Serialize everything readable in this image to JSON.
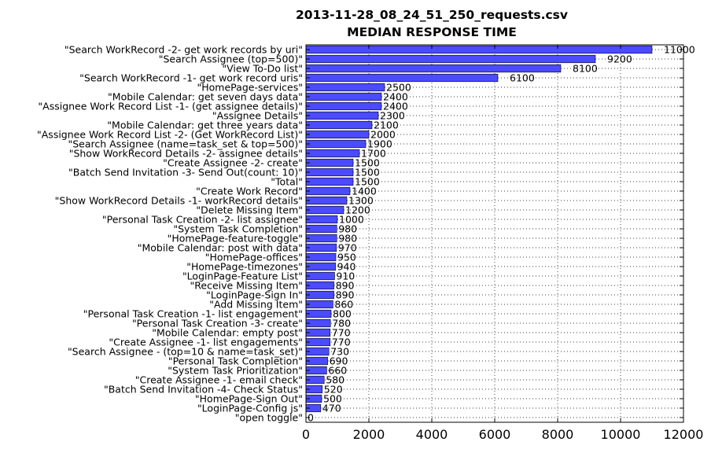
{
  "chart_data": {
    "type": "bar",
    "orientation": "horizontal",
    "title": "2013-11-28_08_24_51_250_requests.csv",
    "subtitle": "MEDIAN RESPONSE TIME",
    "xlabel": "",
    "ylabel": "",
    "xlim": [
      0,
      12000
    ],
    "xticks": [
      "0",
      "2000",
      "4000",
      "6000",
      "8000",
      "10000",
      "12000"
    ],
    "grid": true,
    "bar_color": "#4b4bff",
    "categories": [
      "\"Search WorkRecord -2- get work records by uri\"",
      "\"Search Assignee (top=500)\"",
      "\"View To-Do list\"",
      "\"Search WorkRecord -1- get work record uris\"",
      "\"HomePage-services\"",
      "\"Mobile Calendar: get seven days data\"",
      "\"Assignee Work Record List -1- (get assignee details)\"",
      "\"Assignee Details\"",
      "\"Mobile Calendar: get three years data\"",
      "\"Assignee Work Record List -2- (Get WorkRecord List)\"",
      "\"Search Assignee (name=task_set & top=500)\"",
      "\"Show WorkRecord Details -2- assignee details\"",
      "\"Create Assignee -2- create\"",
      "\"Batch Send Invitation -3- Send Out(count: 10)\"",
      "\"Total\"",
      "\"Create Work Record\"",
      "\"Show WorkRecord Details -1- workRecord details\"",
      "\"Delete Missing Item\"",
      "\"Personal Task Creation -2- list assignee\"",
      "\"System Task Completion\"",
      "\"HomePage-feature-toggle\"",
      "\"Mobile Calendar: post with data\"",
      "\"HomePage-offices\"",
      "\"HomePage-timezones\"",
      "\"LoginPage-Feature List\"",
      "\"Receive Missing Item\"",
      "\"LoginPage-Sign In\"",
      "\"Add Missing Item\"",
      "\"Personal Task Creation -1- list engagement\"",
      "\"Personal Task Creation -3- create\"",
      "\"Mobile Calendar: empty post\"",
      "\"Create Assignee -1- list engagements\"",
      "\"Search Assignee - (top=10 & name=task_set)\"",
      "\"Personal Task Completion\"",
      "\"System Task Prioritization\"",
      "\"Create Assignee -1- email check\"",
      "\"Batch Send Invitation -4- Check Status\"",
      "\"HomePage-Sign Out\"",
      "\"LoginPage-Config js\"",
      "\"open toggle\""
    ],
    "values": [
      11000,
      9200,
      8100,
      6100,
      2500,
      2400,
      2400,
      2300,
      2100,
      2000,
      1900,
      1700,
      1500,
      1500,
      1500,
      1400,
      1300,
      1200,
      1000,
      980,
      980,
      970,
      950,
      940,
      910,
      890,
      890,
      860,
      800,
      780,
      770,
      770,
      730,
      690,
      660,
      580,
      520,
      500,
      470,
      0
    ],
    "value_labels": [
      "11000",
      "9200",
      "8100",
      "6100",
      "2500",
      "2400",
      "2400",
      "2300",
      "2100",
      "2000",
      "1900",
      "1700",
      "1500",
      "1500",
      "1500",
      "1400",
      "1300",
      "1200",
      "1000",
      "980",
      "980",
      "970",
      "950",
      "940",
      "910",
      "890",
      "890",
      "860",
      "800",
      "780",
      "770",
      "770",
      "730",
      "690",
      "660",
      "580",
      "520",
      "500",
      "470",
      "0"
    ]
  }
}
